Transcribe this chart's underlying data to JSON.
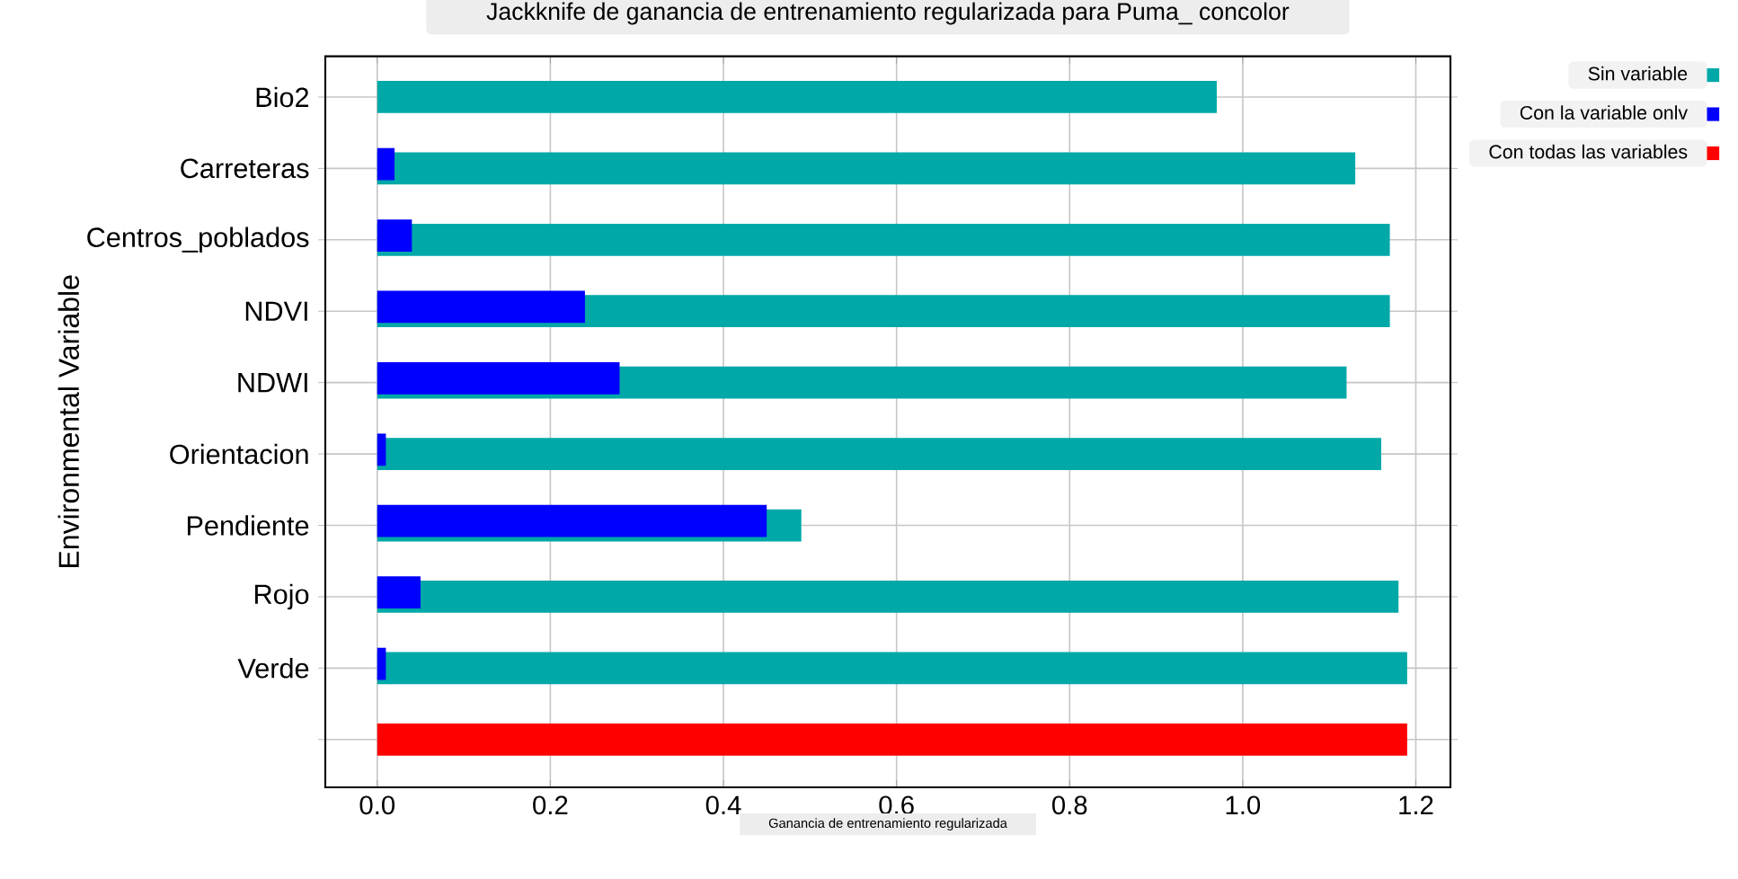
{
  "chart_data": {
    "type": "bar",
    "orientation": "horizontal",
    "title": "Jackknife de ganancia de entrenamiento regularizada para Puma_ concolor",
    "xlabel": "Ganancia de entrenamiento regularizada",
    "ylabel": "Environmental Variable",
    "categories": [
      "Bio2",
      "Carreteras",
      "Centros_poblados",
      "NDVI",
      "NDWI",
      "Orientacion",
      "Pendiente",
      "Rojo",
      "Verde",
      null
    ],
    "series": [
      {
        "name": "Sin variable",
        "color": "#00a8a8",
        "values": [
          0.97,
          1.13,
          1.17,
          1.17,
          1.12,
          1.16,
          0.49,
          1.18,
          1.19,
          null
        ]
      },
      {
        "name": "Con la variable onlv",
        "color": "#0000ff",
        "values": [
          null,
          0.02,
          0.04,
          0.24,
          0.28,
          0.01,
          0.45,
          0.05,
          0.01,
          null
        ]
      },
      {
        "name": "Con todas las variables",
        "color": "#ff0000",
        "values": [
          null,
          null,
          null,
          null,
          null,
          null,
          null,
          null,
          null,
          1.19
        ]
      }
    ],
    "xlim": [
      -0.06,
      1.24
    ],
    "xticks": [
      {
        "value": 0,
        "label": "0.0"
      },
      0.2,
      0.4,
      0.6,
      0.8,
      {
        "value": 1,
        "label": "1.0"
      },
      1.2
    ],
    "grid": true,
    "legend": "top right"
  }
}
